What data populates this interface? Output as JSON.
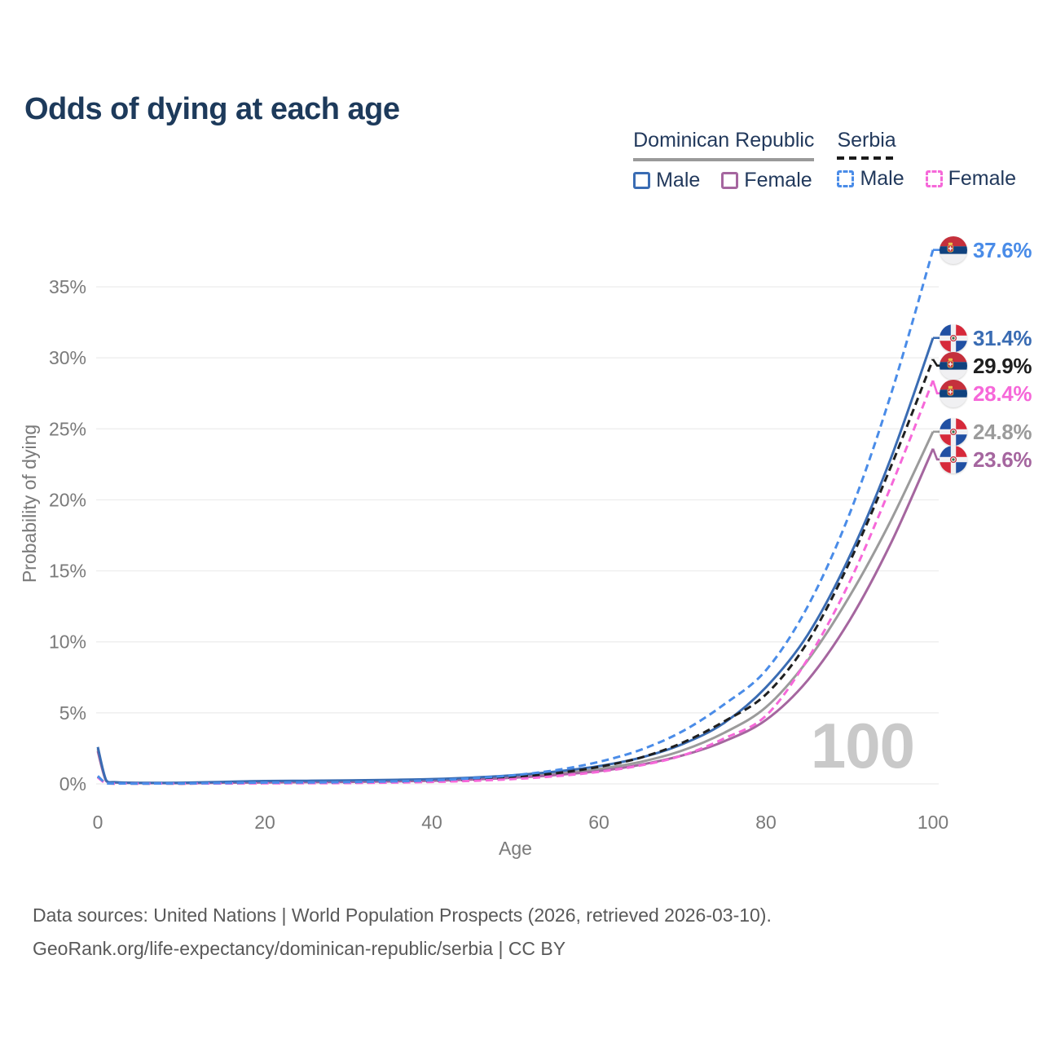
{
  "title": "Odds of dying at each age",
  "legend": {
    "groups": [
      {
        "label": "Dominican Republic",
        "line_style": "solid",
        "underline_color": "#9a9a9a",
        "items": [
          {
            "label": "Male",
            "series": "dr-male"
          },
          {
            "label": "Female",
            "series": "dr-female"
          }
        ]
      },
      {
        "label": "Serbia",
        "line_style": "dashed",
        "underline_color": "#1b1b1b",
        "items": [
          {
            "label": "Male",
            "series": "serbia-male"
          },
          {
            "label": "Female",
            "series": "serbia-female"
          }
        ]
      }
    ]
  },
  "chart_data": {
    "type": "line",
    "title": "Odds of dying at each age",
    "xlabel": "Age",
    "ylabel": "Probability of dying",
    "x_ticks": [
      0,
      20,
      40,
      60,
      80,
      100
    ],
    "y_ticks": [
      "0%",
      "5%",
      "10%",
      "15%",
      "20%",
      "25%",
      "30%",
      "35%"
    ],
    "y_tick_values": [
      0,
      5,
      10,
      15,
      20,
      25,
      30,
      35
    ],
    "xlim": [
      0,
      100
    ],
    "ylim": [
      0,
      38
    ],
    "grid": "horizontal",
    "legend_position": "top-right",
    "watermark": "100",
    "x": [
      0,
      1,
      2,
      5,
      10,
      15,
      20,
      25,
      30,
      35,
      40,
      45,
      50,
      55,
      60,
      65,
      70,
      75,
      80,
      85,
      90,
      95,
      100
    ],
    "series": [
      {
        "id": "dr-total",
        "name": "Dominican Republic",
        "country": "Dominican Republic",
        "sex": "Total",
        "color": "#9b9b9b",
        "dashed": false,
        "flag": "dr",
        "end_label": "24.8%",
        "end_value": 24.8,
        "values": [
          2.45,
          0.22,
          0.11,
          0.065,
          0.065,
          0.11,
          0.15,
          0.17,
          0.19,
          0.22,
          0.28,
          0.38,
          0.52,
          0.74,
          1.05,
          1.55,
          2.35,
          3.6,
          5.4,
          8.7,
          13.2,
          18.6,
          24.8
        ]
      },
      {
        "id": "dr-female",
        "name": "Dominican Republic Female",
        "country": "Dominican Republic",
        "sex": "Female",
        "color": "#a5669f",
        "dashed": false,
        "flag": "dr",
        "end_label": "23.6%",
        "end_value": 23.6,
        "values": [
          2.3,
          0.2,
          0.1,
          0.06,
          0.05,
          0.08,
          0.1,
          0.12,
          0.14,
          0.17,
          0.22,
          0.31,
          0.44,
          0.63,
          0.9,
          1.35,
          2.0,
          3.0,
          4.5,
          7.3,
          11.5,
          17.0,
          23.6
        ]
      },
      {
        "id": "dr-male",
        "name": "Dominican Republic Male",
        "country": "Dominican Republic",
        "sex": "Male",
        "color": "#3a6cb3",
        "dashed": false,
        "flag": "dr",
        "end_label": "31.4%",
        "end_value": 31.4,
        "values": [
          2.6,
          0.25,
          0.12,
          0.07,
          0.08,
          0.14,
          0.2,
          0.22,
          0.24,
          0.28,
          0.34,
          0.45,
          0.62,
          0.88,
          1.25,
          1.85,
          2.8,
          4.3,
          6.8,
          10.5,
          16.0,
          23.0,
          31.4
        ]
      },
      {
        "id": "serbia-total",
        "name": "Serbia",
        "country": "Serbia",
        "sex": "Total",
        "color": "#1f1f1f",
        "dashed": true,
        "flag": "serbia",
        "end_label": "29.9%",
        "end_value": 29.9,
        "values": [
          0.5,
          0.035,
          0.025,
          0.018,
          0.02,
          0.045,
          0.06,
          0.07,
          0.09,
          0.13,
          0.19,
          0.3,
          0.48,
          0.76,
          1.2,
          1.85,
          2.9,
          4.4,
          6.3,
          10.0,
          15.6,
          22.4,
          29.9
        ]
      },
      {
        "id": "serbia-female",
        "name": "Serbia Female",
        "country": "Serbia",
        "sex": "Female",
        "color": "#f668d9",
        "dashed": true,
        "flag": "serbia",
        "end_label": "28.4%",
        "end_value": 28.4,
        "values": [
          0.45,
          0.03,
          0.02,
          0.015,
          0.015,
          0.03,
          0.04,
          0.05,
          0.06,
          0.09,
          0.14,
          0.22,
          0.35,
          0.55,
          0.85,
          1.3,
          2.0,
          3.2,
          4.8,
          8.8,
          14.2,
          21.0,
          28.4
        ]
      },
      {
        "id": "serbia-male",
        "name": "Serbia Male",
        "country": "Serbia",
        "sex": "Male",
        "color": "#4a8ce8",
        "dashed": true,
        "flag": "serbia",
        "end_label": "37.6%",
        "end_value": 37.6,
        "values": [
          0.55,
          0.04,
          0.03,
          0.02,
          0.03,
          0.06,
          0.09,
          0.1,
          0.12,
          0.17,
          0.25,
          0.4,
          0.62,
          0.98,
          1.55,
          2.4,
          3.7,
          5.6,
          8.0,
          12.5,
          19.0,
          27.5,
          37.6
        ]
      }
    ]
  },
  "footer": {
    "line1": "Data sources: United Nations | World Population Prospects (2026, retrieved 2026-03-10).",
    "line2": "GeoRank.org/life-expectancy/dominican-republic/serbia | CC BY"
  },
  "colors": {
    "title": "#1d3a5b",
    "axis_text": "#7a7a7a",
    "gridline": "#ececec",
    "watermark": "#c9c9c9",
    "footer_text": "#595959"
  }
}
